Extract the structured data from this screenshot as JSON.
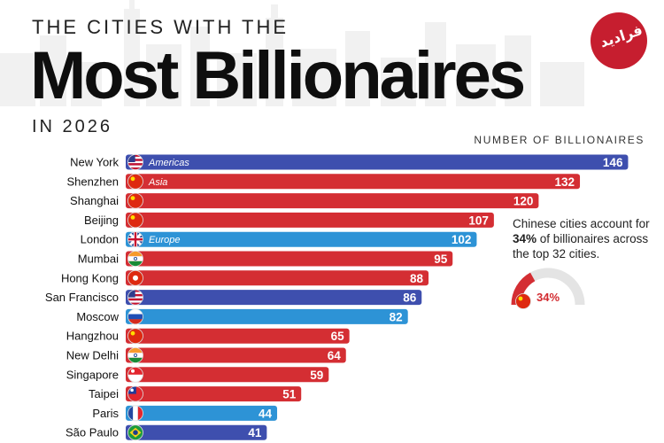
{
  "logo_text": "فرادید",
  "header": {
    "pre_title": "THE CITIES WITH THE",
    "title": "Most Billionaires",
    "sub_title": "IN 2026"
  },
  "annotation": {
    "text_before": "Chinese cities account for ",
    "highlight": "34%",
    "text_after": " of billionaires across the top 32 cities.",
    "gauge_value": 34,
    "gauge_label": "34%"
  },
  "colors": {
    "Americas": "#3e4fae",
    "Asia": "#d42e33",
    "Europe": "#2d93d6",
    "gauge_track": "#e4e4e4"
  },
  "chart_data": {
    "type": "bar",
    "orientation": "horizontal",
    "title": "Most Billionaires",
    "xlabel": "NUMBER OF BILLIONAIRES",
    "xlim": [
      0,
      150
    ],
    "grid": false,
    "categories": [
      "New York",
      "Shenzhen",
      "Shanghai",
      "Beijing",
      "London",
      "Mumbai",
      "Hong Kong",
      "San Francisco",
      "Moscow",
      "Hangzhou",
      "New Delhi",
      "Singapore",
      "Taipei",
      "Paris",
      "São Paulo"
    ],
    "values": [
      146,
      132,
      120,
      107,
      102,
      95,
      88,
      86,
      82,
      65,
      64,
      59,
      51,
      44,
      41
    ],
    "regions": [
      "Americas",
      "Asia",
      "Asia",
      "Asia",
      "Europe",
      "Asia",
      "Asia",
      "Americas",
      "Europe",
      "Asia",
      "Asia",
      "Asia",
      "Asia",
      "Europe",
      "Americas"
    ],
    "flags": [
      "us",
      "cn",
      "cn",
      "cn",
      "gb",
      "in",
      "hk",
      "us",
      "ru",
      "cn",
      "in",
      "sg",
      "tw",
      "fr",
      "br"
    ],
    "legend_entries": [
      {
        "index": 0,
        "label": "Americas"
      },
      {
        "index": 1,
        "label": "Asia"
      },
      {
        "index": 4,
        "label": "Europe"
      }
    ]
  }
}
